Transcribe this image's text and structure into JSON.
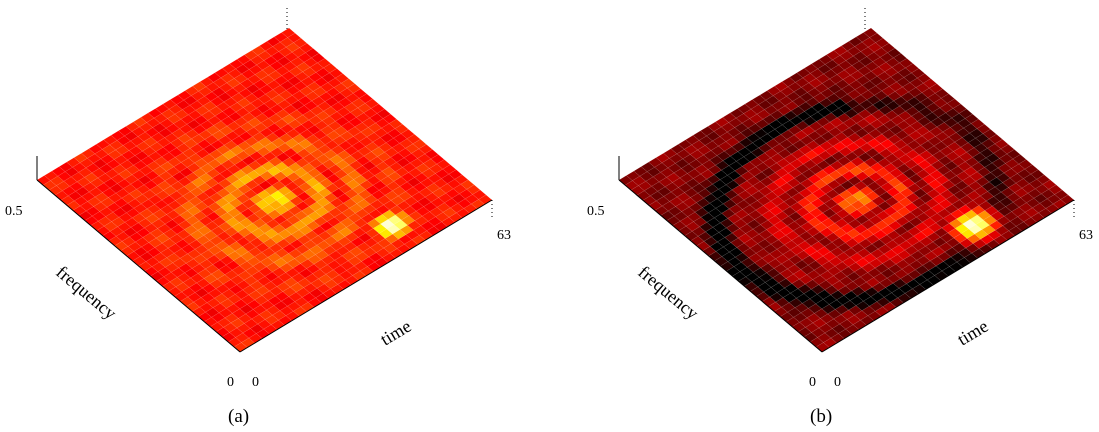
{
  "chart_data": [
    {
      "type": "heatmap",
      "panel_label": "(a)",
      "xlabel": "time",
      "ylabel": "frequency",
      "x_ticks": [
        "0",
        "63"
      ],
      "y_ticks": [
        "0",
        "0.5"
      ],
      "xlim": [
        0,
        63
      ],
      "ylim": [
        0,
        0.5
      ],
      "colormap": "hot",
      "features": {
        "peak": {
          "time": 44,
          "frequency": 0.06,
          "value": 1.0
        },
        "arc_center": {
          "time": 31,
          "frequency": 0.22
        },
        "background_level": 0.55
      }
    },
    {
      "type": "heatmap",
      "panel_label": "(b)",
      "xlabel": "time",
      "ylabel": "frequency",
      "x_ticks": [
        "0",
        "63"
      ],
      "y_ticks": [
        "0",
        "0.5"
      ],
      "xlim": [
        0,
        63
      ],
      "ylim": [
        0,
        0.5
      ],
      "colormap": "hot",
      "features": {
        "peak": {
          "time": 44,
          "frequency": 0.06,
          "value": 1.0
        },
        "arc_center": {
          "time": 31,
          "frequency": 0.22
        },
        "background_level": 0.35
      }
    }
  ]
}
